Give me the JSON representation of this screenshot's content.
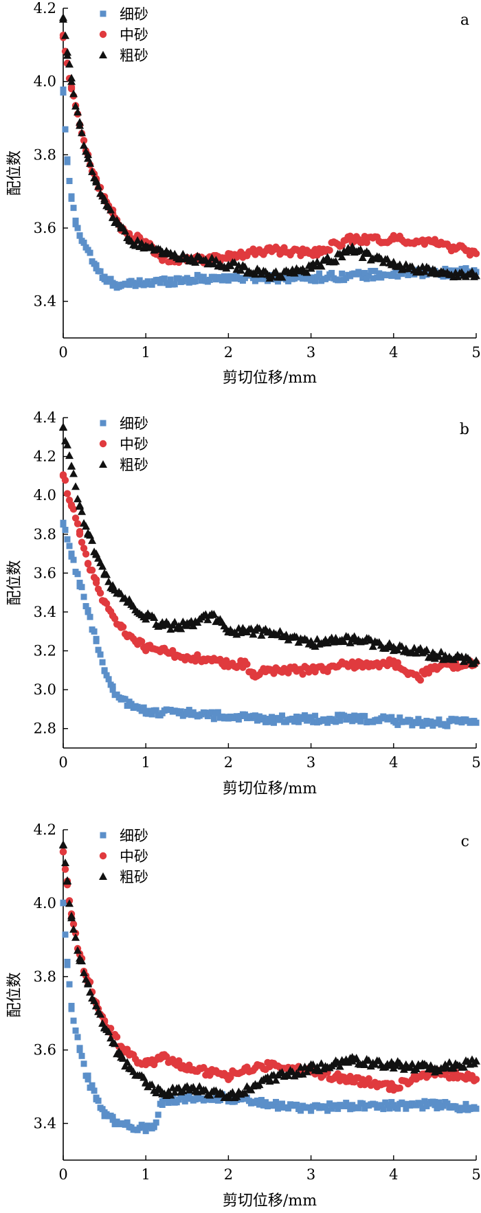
{
  "figure": {
    "series_styles": [
      {
        "name": "细砂",
        "color": "#5b8fc9",
        "marker": "square"
      },
      {
        "name": "中砂",
        "color": "#e03a3e",
        "marker": "circle"
      },
      {
        "name": "粗砂",
        "color": "#111111",
        "marker": "triangle"
      }
    ]
  },
  "chart_data": [
    {
      "type": "scatter",
      "panel_label": "a",
      "title": "",
      "xlabel": "剪切位移/mm",
      "ylabel": "配位数",
      "xlim": [
        0,
        5
      ],
      "ylim": [
        3.3,
        4.2
      ],
      "xticks": [
        "0",
        "1",
        "2",
        "3",
        "4",
        "5"
      ],
      "yticks": [
        "3.4",
        "3.6",
        "3.8",
        "4.0",
        "4.2"
      ],
      "legend_position": "top-left",
      "series": [
        {
          "name": "细砂",
          "x": [
            0,
            0.05,
            0.1,
            0.15,
            0.2,
            0.3,
            0.4,
            0.5,
            0.6,
            0.7,
            0.8,
            1.0,
            1.5,
            2.0,
            3.0,
            4.0,
            5.0
          ],
          "values": [
            3.97,
            3.78,
            3.68,
            3.62,
            3.58,
            3.54,
            3.49,
            3.46,
            3.45,
            3.445,
            3.445,
            3.45,
            3.46,
            3.465,
            3.465,
            3.475,
            3.48
          ]
        },
        {
          "name": "中砂",
          "x": [
            0,
            0.05,
            0.1,
            0.2,
            0.3,
            0.4,
            0.5,
            0.6,
            0.7,
            0.8,
            1.0,
            1.2,
            1.5,
            2.0,
            2.5,
            3.0,
            3.5,
            4.0,
            4.5,
            5.0
          ],
          "values": [
            4.12,
            4.05,
            3.98,
            3.88,
            3.8,
            3.73,
            3.68,
            3.64,
            3.6,
            3.58,
            3.56,
            3.52,
            3.51,
            3.52,
            3.54,
            3.53,
            3.57,
            3.57,
            3.56,
            3.53
          ]
        },
        {
          "name": "粗砂",
          "x": [
            0,
            0.05,
            0.1,
            0.2,
            0.3,
            0.4,
            0.5,
            0.6,
            0.7,
            0.8,
            1.0,
            1.2,
            1.5,
            2.0,
            2.5,
            3.0,
            3.5,
            4.0,
            4.5,
            5.0
          ],
          "values": [
            4.17,
            4.08,
            4.0,
            3.88,
            3.79,
            3.73,
            3.68,
            3.63,
            3.6,
            3.57,
            3.55,
            3.53,
            3.52,
            3.5,
            3.47,
            3.49,
            3.54,
            3.5,
            3.48,
            3.47
          ]
        }
      ]
    },
    {
      "type": "scatter",
      "panel_label": "b",
      "title": "",
      "xlabel": "剪切位移/mm",
      "ylabel": "配位数",
      "xlim": [
        0,
        5
      ],
      "ylim": [
        2.7,
        4.4
      ],
      "xticks": [
        "0",
        "1",
        "2",
        "3",
        "4",
        "5"
      ],
      "yticks": [
        "2.8",
        "3.0",
        "3.2",
        "3.4",
        "3.6",
        "3.8",
        "4.0",
        "4.2",
        "4.4"
      ],
      "legend_position": "top-left",
      "series": [
        {
          "name": "细砂",
          "x": [
            0,
            0.1,
            0.2,
            0.3,
            0.4,
            0.5,
            0.6,
            0.7,
            0.8,
            1.0,
            1.5,
            2.0,
            2.5,
            3.0,
            3.5,
            4.0,
            4.5,
            5.0
          ],
          "values": [
            3.85,
            3.7,
            3.55,
            3.4,
            3.25,
            3.1,
            3.0,
            2.95,
            2.92,
            2.89,
            2.88,
            2.86,
            2.85,
            2.85,
            2.85,
            2.84,
            2.83,
            2.83
          ]
        },
        {
          "name": "中砂",
          "x": [
            0,
            0.1,
            0.2,
            0.3,
            0.4,
            0.5,
            0.6,
            0.7,
            0.8,
            1.0,
            1.5,
            2.0,
            2.2,
            2.3,
            2.5,
            3.0,
            3.5,
            4.0,
            4.3,
            4.5,
            5.0
          ],
          "values": [
            4.1,
            3.95,
            3.8,
            3.65,
            3.55,
            3.45,
            3.38,
            3.32,
            3.28,
            3.22,
            3.17,
            3.13,
            3.13,
            3.07,
            3.1,
            3.1,
            3.13,
            3.14,
            3.06,
            3.12,
            3.14
          ]
        },
        {
          "name": "粗砂",
          "x": [
            0,
            0.1,
            0.2,
            0.3,
            0.4,
            0.5,
            0.6,
            0.8,
            1.0,
            1.2,
            1.5,
            1.8,
            2.0,
            2.5,
            3.0,
            3.5,
            4.0,
            4.5,
            5.0
          ],
          "values": [
            4.35,
            4.15,
            3.95,
            3.8,
            3.7,
            3.6,
            3.52,
            3.45,
            3.38,
            3.33,
            3.33,
            3.39,
            3.3,
            3.3,
            3.24,
            3.26,
            3.22,
            3.18,
            3.15
          ]
        }
      ]
    },
    {
      "type": "scatter",
      "panel_label": "c",
      "title": "",
      "xlabel": "剪切位移/mm",
      "ylabel": "配位数",
      "xlim": [
        0,
        5
      ],
      "ylim": [
        3.3,
        4.2
      ],
      "xticks": [
        "0",
        "1",
        "2",
        "3",
        "4",
        "5"
      ],
      "yticks": [
        "3.4",
        "3.6",
        "3.8",
        "4.0",
        "4.2"
      ],
      "legend_position": "top-left",
      "series": [
        {
          "name": "细砂",
          "x": [
            0,
            0.05,
            0.1,
            0.2,
            0.3,
            0.4,
            0.5,
            0.6,
            0.7,
            0.8,
            1.0,
            1.1,
            1.2,
            1.5,
            2.0,
            2.5,
            3.0,
            3.5,
            4.0,
            4.5,
            5.0
          ],
          "values": [
            4.0,
            3.84,
            3.72,
            3.6,
            3.52,
            3.47,
            3.43,
            3.41,
            3.4,
            3.39,
            3.39,
            3.39,
            3.46,
            3.47,
            3.47,
            3.45,
            3.44,
            3.45,
            3.45,
            3.45,
            3.44
          ]
        },
        {
          "name": "中砂",
          "x": [
            0,
            0.05,
            0.1,
            0.2,
            0.3,
            0.4,
            0.5,
            0.6,
            0.7,
            0.8,
            1.0,
            1.2,
            1.5,
            2.0,
            2.5,
            3.0,
            3.5,
            4.0,
            4.5,
            5.0
          ],
          "values": [
            4.14,
            4.05,
            3.96,
            3.86,
            3.79,
            3.73,
            3.68,
            3.64,
            3.61,
            3.59,
            3.56,
            3.58,
            3.55,
            3.53,
            3.56,
            3.54,
            3.52,
            3.5,
            3.54,
            3.52
          ]
        },
        {
          "name": "粗砂",
          "x": [
            0,
            0.05,
            0.1,
            0.2,
            0.3,
            0.4,
            0.5,
            0.6,
            0.7,
            0.8,
            1.0,
            1.2,
            1.5,
            2.0,
            2.5,
            3.0,
            3.5,
            4.0,
            4.5,
            5.0
          ],
          "values": [
            4.16,
            4.06,
            3.96,
            3.85,
            3.78,
            3.72,
            3.66,
            3.62,
            3.58,
            3.55,
            3.51,
            3.48,
            3.5,
            3.47,
            3.52,
            3.55,
            3.57,
            3.56,
            3.55,
            3.57
          ]
        }
      ]
    }
  ]
}
